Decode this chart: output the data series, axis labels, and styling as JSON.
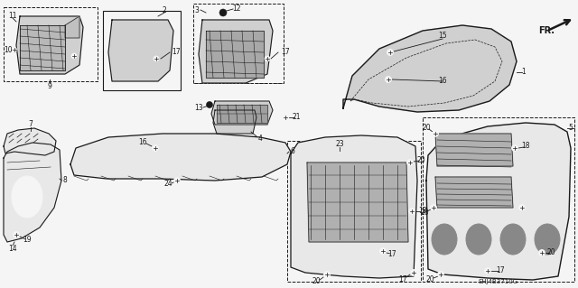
{
  "background_color": "#f5f5f5",
  "line_color": "#1a1a1a",
  "diagram_code": "SHJ4B3710G",
  "figsize": [
    6.4,
    3.19
  ],
  "dpi": 100
}
